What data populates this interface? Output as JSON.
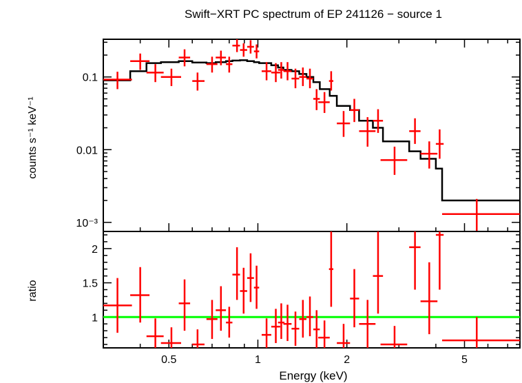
{
  "chart_data": [
    {
      "type": "scatter",
      "title": "Swift−XRT PC spectrum of EP 241126 − source 1",
      "xlabel": "",
      "ylabel": "counts s⁻¹ keV⁻¹",
      "x_scale": "log",
      "y_scale": "log",
      "xlim": [
        0.3,
        7.7
      ],
      "ylim": [
        0.00075,
        0.33
      ],
      "y_ticks": [
        {
          "value": 0.1,
          "label": "0.1"
        },
        {
          "value": 0.01,
          "label": "0.01"
        },
        {
          "value": 0.001,
          "label": "10⁻³"
        }
      ],
      "series": [
        {
          "type": "errorbar",
          "color": "#ff0000",
          "points": [
            {
              "x": 0.335,
              "xlo": 0.3,
              "xhi": 0.375,
              "y": 0.092,
              "ylo": 0.068,
              "yhi": 0.118
            },
            {
              "x": 0.4,
              "xlo": 0.37,
              "xhi": 0.43,
              "y": 0.165,
              "ylo": 0.125,
              "yhi": 0.21
            },
            {
              "x": 0.45,
              "xlo": 0.42,
              "xhi": 0.48,
              "y": 0.115,
              "ylo": 0.085,
              "yhi": 0.15
            },
            {
              "x": 0.51,
              "xlo": 0.47,
              "xhi": 0.55,
              "y": 0.1,
              "ylo": 0.075,
              "yhi": 0.13
            },
            {
              "x": 0.565,
              "xlo": 0.54,
              "xhi": 0.59,
              "y": 0.185,
              "ylo": 0.14,
              "yhi": 0.24
            },
            {
              "x": 0.625,
              "xlo": 0.6,
              "xhi": 0.66,
              "y": 0.088,
              "ylo": 0.065,
              "yhi": 0.115
            },
            {
              "x": 0.7,
              "xlo": 0.67,
              "xhi": 0.73,
              "y": 0.15,
              "ylo": 0.115,
              "yhi": 0.19
            },
            {
              "x": 0.75,
              "xlo": 0.72,
              "xhi": 0.78,
              "y": 0.185,
              "ylo": 0.145,
              "yhi": 0.23
            },
            {
              "x": 0.8,
              "xlo": 0.78,
              "xhi": 0.82,
              "y": 0.15,
              "ylo": 0.115,
              "yhi": 0.19
            },
            {
              "x": 0.85,
              "xlo": 0.82,
              "xhi": 0.87,
              "y": 0.27,
              "ylo": 0.22,
              "yhi": 0.33
            },
            {
              "x": 0.895,
              "xlo": 0.87,
              "xhi": 0.92,
              "y": 0.235,
              "ylo": 0.19,
              "yhi": 0.29
            },
            {
              "x": 0.945,
              "xlo": 0.92,
              "xhi": 0.97,
              "y": 0.26,
              "ylo": 0.21,
              "yhi": 0.32
            },
            {
              "x": 0.99,
              "xlo": 0.97,
              "xhi": 1.01,
              "y": 0.225,
              "ylo": 0.18,
              "yhi": 0.28
            },
            {
              "x": 1.07,
              "xlo": 1.03,
              "xhi": 1.11,
              "y": 0.12,
              "ylo": 0.09,
              "yhi": 0.16
            },
            {
              "x": 1.15,
              "xlo": 1.11,
              "xhi": 1.19,
              "y": 0.115,
              "ylo": 0.085,
              "yhi": 0.155
            },
            {
              "x": 1.2,
              "xlo": 1.17,
              "xhi": 1.23,
              "y": 0.125,
              "ylo": 0.095,
              "yhi": 0.16
            },
            {
              "x": 1.26,
              "xlo": 1.22,
              "xhi": 1.3,
              "y": 0.12,
              "ylo": 0.09,
              "yhi": 0.16
            },
            {
              "x": 1.34,
              "xlo": 1.3,
              "xhi": 1.38,
              "y": 0.095,
              "ylo": 0.07,
              "yhi": 0.13
            },
            {
              "x": 1.42,
              "xlo": 1.38,
              "xhi": 1.46,
              "y": 0.1,
              "ylo": 0.075,
              "yhi": 0.135
            },
            {
              "x": 1.5,
              "xlo": 1.46,
              "xhi": 1.54,
              "y": 0.095,
              "ylo": 0.07,
              "yhi": 0.13
            },
            {
              "x": 1.58,
              "xlo": 1.54,
              "xhi": 1.62,
              "y": 0.05,
              "ylo": 0.035,
              "yhi": 0.068
            },
            {
              "x": 1.68,
              "xlo": 1.6,
              "xhi": 1.75,
              "y": 0.045,
              "ylo": 0.032,
              "yhi": 0.062
            },
            {
              "x": 1.77,
              "xlo": 1.74,
              "xhi": 1.8,
              "y": 0.088,
              "ylo": 0.065,
              "yhi": 0.12
            },
            {
              "x": 1.95,
              "xlo": 1.85,
              "xhi": 2.05,
              "y": 0.023,
              "ylo": 0.015,
              "yhi": 0.034
            },
            {
              "x": 2.12,
              "xlo": 2.05,
              "xhi": 2.2,
              "y": 0.035,
              "ylo": 0.024,
              "yhi": 0.05
            },
            {
              "x": 2.35,
              "xlo": 2.2,
              "xhi": 2.5,
              "y": 0.018,
              "ylo": 0.011,
              "yhi": 0.028
            },
            {
              "x": 2.55,
              "xlo": 2.45,
              "xhi": 2.65,
              "y": 0.025,
              "ylo": 0.017,
              "yhi": 0.036
            },
            {
              "x": 2.9,
              "xlo": 2.6,
              "xhi": 3.2,
              "y": 0.0072,
              "ylo": 0.0045,
              "yhi": 0.011
            },
            {
              "x": 3.4,
              "xlo": 3.25,
              "xhi": 3.55,
              "y": 0.018,
              "ylo": 0.012,
              "yhi": 0.027
            },
            {
              "x": 3.8,
              "xlo": 3.55,
              "xhi": 4.05,
              "y": 0.0088,
              "ylo": 0.0055,
              "yhi": 0.013
            },
            {
              "x": 4.12,
              "xlo": 4.0,
              "xhi": 4.25,
              "y": 0.012,
              "ylo": 0.0075,
              "yhi": 0.019
            },
            {
              "x": 5.5,
              "xlo": 4.2,
              "xhi": 7.7,
              "y": 0.0013,
              "ylo": 0.00075,
              "yhi": 0.0021
            }
          ]
        },
        {
          "type": "step",
          "color": "#000000",
          "edges": [
            0.3,
            0.37,
            0.42,
            0.47,
            0.54,
            0.6,
            0.67,
            0.72,
            0.78,
            0.82,
            0.87,
            0.92,
            0.97,
            1.01,
            1.11,
            1.17,
            1.22,
            1.3,
            1.38,
            1.46,
            1.54,
            1.62,
            1.75,
            1.85,
            2.05,
            2.2,
            2.45,
            2.65,
            3.25,
            3.55,
            4.0,
            4.2,
            7.7
          ],
          "values": [
            0.09,
            0.12,
            0.155,
            0.16,
            0.165,
            0.158,
            0.155,
            0.16,
            0.165,
            0.168,
            0.17,
            0.165,
            0.16,
            0.155,
            0.145,
            0.135,
            0.125,
            0.12,
            0.11,
            0.1,
            0.085,
            0.068,
            0.055,
            0.04,
            0.035,
            0.025,
            0.02,
            0.013,
            0.0095,
            0.0075,
            0.0055,
            0.002
          ]
        }
      ]
    },
    {
      "type": "scatter",
      "xlabel": "Energy (keV)",
      "ylabel": "ratio",
      "x_scale": "log",
      "xlim": [
        0.3,
        7.7
      ],
      "ylim": [
        0.55,
        2.25
      ],
      "x_ticks": [
        {
          "value": 0.5,
          "label": "0.5"
        },
        {
          "value": 1,
          "label": "1"
        },
        {
          "value": 2,
          "label": "2"
        },
        {
          "value": 5,
          "label": "5"
        }
      ],
      "y_ticks": [
        {
          "value": 1,
          "label": "1"
        },
        {
          "value": 1.5,
          "label": "1.5"
        },
        {
          "value": 2,
          "label": "2"
        }
      ],
      "reference_line": {
        "y": 1,
        "color": "#00ff00"
      },
      "series": [
        {
          "type": "errorbar",
          "color": "#ff0000",
          "points": [
            {
              "x": 0.335,
              "xlo": 0.3,
              "xhi": 0.375,
              "y": 1.17,
              "ylo": 0.77,
              "yhi": 1.57
            },
            {
              "x": 0.4,
              "xlo": 0.37,
              "xhi": 0.43,
              "y": 1.32,
              "ylo": 0.92,
              "yhi": 1.73
            },
            {
              "x": 0.45,
              "xlo": 0.42,
              "xhi": 0.48,
              "y": 0.72,
              "ylo": 0.45,
              "yhi": 0.98
            },
            {
              "x": 0.51,
              "xlo": 0.47,
              "xhi": 0.55,
              "y": 0.62,
              "ylo": 0.38,
              "yhi": 0.85
            },
            {
              "x": 0.565,
              "xlo": 0.54,
              "xhi": 0.59,
              "y": 1.2,
              "ylo": 0.8,
              "yhi": 1.55
            },
            {
              "x": 0.625,
              "xlo": 0.6,
              "xhi": 0.66,
              "y": 0.6,
              "ylo": 0.38,
              "yhi": 0.82
            },
            {
              "x": 0.7,
              "xlo": 0.67,
              "xhi": 0.73,
              "y": 0.97,
              "ylo": 0.68,
              "yhi": 1.25
            },
            {
              "x": 0.75,
              "xlo": 0.72,
              "xhi": 0.78,
              "y": 1.1,
              "ylo": 0.8,
              "yhi": 1.45
            },
            {
              "x": 0.8,
              "xlo": 0.78,
              "xhi": 0.82,
              "y": 0.92,
              "ylo": 0.7,
              "yhi": 1.15
            },
            {
              "x": 0.85,
              "xlo": 0.82,
              "xhi": 0.87,
              "y": 1.62,
              "ylo": 1.25,
              "yhi": 2.02
            },
            {
              "x": 0.895,
              "xlo": 0.87,
              "xhi": 0.92,
              "y": 1.38,
              "ylo": 1.05,
              "yhi": 1.72
            },
            {
              "x": 0.945,
              "xlo": 0.92,
              "xhi": 0.97,
              "y": 1.57,
              "ylo": 1.22,
              "yhi": 1.93
            },
            {
              "x": 0.99,
              "xlo": 0.97,
              "xhi": 1.01,
              "y": 1.43,
              "ylo": 1.12,
              "yhi": 1.75
            },
            {
              "x": 1.07,
              "xlo": 1.03,
              "xhi": 1.11,
              "y": 0.74,
              "ylo": 0.5,
              "yhi": 0.98
            },
            {
              "x": 1.15,
              "xlo": 1.11,
              "xhi": 1.19,
              "y": 0.86,
              "ylo": 0.62,
              "yhi": 1.12
            },
            {
              "x": 1.2,
              "xlo": 1.17,
              "xhi": 1.23,
              "y": 0.92,
              "ylo": 0.68,
              "yhi": 1.2
            },
            {
              "x": 1.26,
              "xlo": 1.22,
              "xhi": 1.3,
              "y": 0.9,
              "ylo": 0.65,
              "yhi": 1.18
            },
            {
              "x": 1.34,
              "xlo": 1.3,
              "xhi": 1.38,
              "y": 0.83,
              "ylo": 0.58,
              "yhi": 1.08
            },
            {
              "x": 1.42,
              "xlo": 1.38,
              "xhi": 1.46,
              "y": 0.97,
              "ylo": 0.7,
              "yhi": 1.25
            },
            {
              "x": 1.5,
              "xlo": 1.46,
              "xhi": 1.54,
              "y": 1.0,
              "ylo": 0.72,
              "yhi": 1.3
            },
            {
              "x": 1.58,
              "xlo": 1.54,
              "xhi": 1.62,
              "y": 0.82,
              "ylo": 0.55,
              "yhi": 1.1
            },
            {
              "x": 1.68,
              "xlo": 1.6,
              "xhi": 1.75,
              "y": 0.7,
              "ylo": 0.45,
              "yhi": 0.95
            },
            {
              "x": 1.77,
              "xlo": 1.74,
              "xhi": 1.8,
              "y": 1.7,
              "ylo": 1.15,
              "yhi": 2.25
            },
            {
              "x": 1.95,
              "xlo": 1.85,
              "xhi": 2.05,
              "y": 0.62,
              "ylo": 0.35,
              "yhi": 0.9
            },
            {
              "x": 2.12,
              "xlo": 2.05,
              "xhi": 2.2,
              "y": 1.27,
              "ylo": 0.85,
              "yhi": 1.7
            },
            {
              "x": 2.35,
              "xlo": 2.2,
              "xhi": 2.5,
              "y": 0.9,
              "ylo": 0.55,
              "yhi": 1.25
            },
            {
              "x": 2.55,
              "xlo": 2.45,
              "xhi": 2.65,
              "y": 1.6,
              "ylo": 1.05,
              "yhi": 2.25
            },
            {
              "x": 2.9,
              "xlo": 2.6,
              "xhi": 3.2,
              "y": 0.6,
              "ylo": 0.35,
              "yhi": 0.87
            },
            {
              "x": 3.4,
              "xlo": 3.25,
              "xhi": 3.55,
              "y": 2.02,
              "ylo": 1.4,
              "yhi": 2.25
            },
            {
              "x": 3.8,
              "xlo": 3.55,
              "xhi": 4.05,
              "y": 1.23,
              "ylo": 0.75,
              "yhi": 1.8
            },
            {
              "x": 4.12,
              "xlo": 4.0,
              "xhi": 4.25,
              "y": 2.2,
              "ylo": 1.4,
              "yhi": 2.25
            },
            {
              "x": 5.5,
              "xlo": 4.2,
              "xhi": 7.7,
              "y": 0.66,
              "ylo": 0.35,
              "yhi": 1.0
            }
          ]
        }
      ]
    }
  ]
}
